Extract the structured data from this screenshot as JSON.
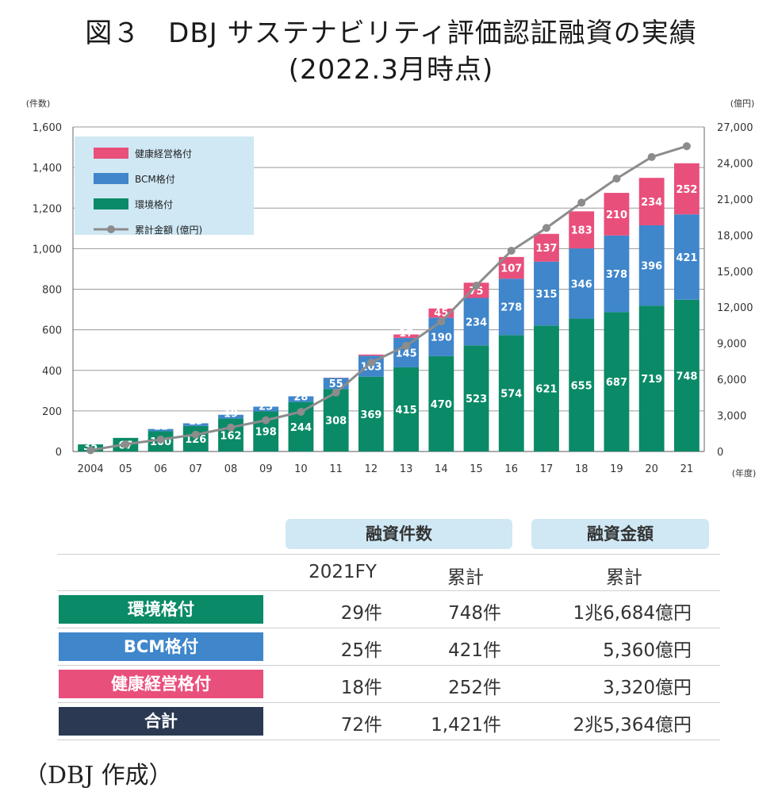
{
  "title": {
    "line1": "図３　DBJ サステナビリティ評価認証融資の実績",
    "line2": "(2022.3月時点)"
  },
  "chart_data": {
    "type": "bar",
    "stacked": true,
    "categories": [
      "2004",
      "05",
      "06",
      "07",
      "08",
      "09",
      "10",
      "11",
      "12",
      "13",
      "14",
      "15",
      "16",
      "17",
      "18",
      "19",
      "20",
      "21"
    ],
    "series": [
      {
        "name": "環境格付",
        "color": "#0a8a67",
        "values": [
          35,
          67,
          100,
          126,
          162,
          198,
          244,
          308,
          369,
          415,
          470,
          523,
          574,
          621,
          655,
          687,
          719,
          748
        ]
      },
      {
        "name": "BCM格付",
        "color": "#3f86cb",
        "values": [
          0,
          0,
          11,
          13,
          19,
          23,
          28,
          55,
          103,
          145,
          190,
          234,
          278,
          315,
          346,
          378,
          396,
          421
        ]
      },
      {
        "name": "健康経営格付",
        "color": "#e94f7b",
        "values": [
          0,
          0,
          0,
          0,
          0,
          0,
          0,
          1,
          6,
          17,
          45,
          75,
          107,
          137,
          183,
          210,
          234,
          252
        ]
      }
    ],
    "line_series": {
      "name": "累計金額 (億円)",
      "color": "#8c8c8c",
      "values": [
        100,
        600,
        1000,
        1400,
        2000,
        2600,
        3300,
        4900,
        7400,
        8800,
        10800,
        13800,
        16700,
        18600,
        20700,
        22700,
        24500,
        25400
      ]
    },
    "y_left": {
      "unit": "(件数)",
      "ticks": [
        "0",
        "200",
        "400",
        "600",
        "800",
        "1,000",
        "1,200",
        "1,400",
        "1,600"
      ],
      "max": 1600
    },
    "y_right": {
      "unit": "(億円)",
      "ticks": [
        "0",
        "3,000",
        "6,000",
        "9,000",
        "12,000",
        "15,000",
        "18,000",
        "21,000",
        "24,000",
        "27,000"
      ],
      "max": 27000
    },
    "x_unit": "(年度)",
    "legend_position": "top-left",
    "grid": true
  },
  "table": {
    "header_count": "融資件数",
    "header_amount": "融資金額",
    "sub_fy": "2021FY",
    "sub_cum1": "累計",
    "sub_cum2": "累計",
    "rows": [
      {
        "label": "環境格付",
        "color": "#0a8a67",
        "fy": "29件",
        "cum": "748件",
        "amount": "1兆6,684億円"
      },
      {
        "label": "BCM格付",
        "color": "#3f86cb",
        "fy": "25件",
        "cum": "421件",
        "amount": "5,360億円"
      },
      {
        "label": "健康経営格付",
        "color": "#e94f7b",
        "fy": "18件",
        "cum": "252件",
        "amount": "3,320億円"
      },
      {
        "label": "合計",
        "color": "#2b3a52",
        "fy": "72件",
        "cum": "1,421件",
        "amount": "2兆5,364億円"
      }
    ]
  },
  "source": "（DBJ 作成）"
}
